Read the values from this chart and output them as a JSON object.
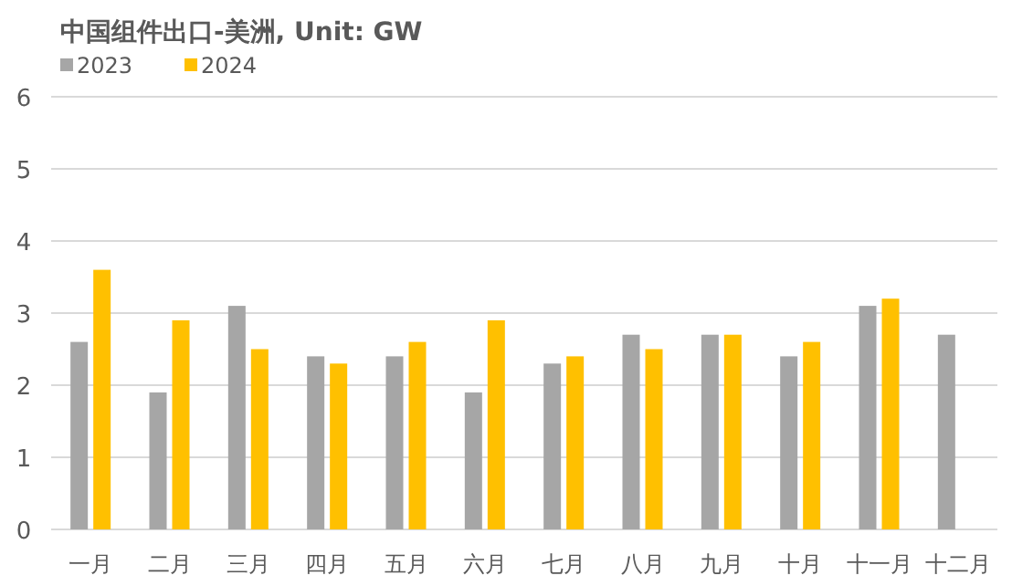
{
  "chart_data": {
    "type": "bar",
    "title": "中国组件出口-美洲, Unit: GW",
    "categories": [
      "一月",
      "二月",
      "三月",
      "四月",
      "五月",
      "六月",
      "七月",
      "八月",
      "九月",
      "十月",
      "十一月",
      "十二月"
    ],
    "series": [
      {
        "name": "2023",
        "color": "#a6a6a6",
        "values": [
          2.6,
          1.9,
          3.1,
          2.4,
          2.4,
          1.9,
          2.3,
          2.7,
          2.7,
          2.4,
          3.1,
          2.7
        ]
      },
      {
        "name": "2024",
        "color": "#ffc000",
        "values": [
          3.6,
          2.9,
          2.5,
          2.3,
          2.6,
          2.9,
          2.4,
          2.5,
          2.7,
          2.6,
          3.2,
          null
        ]
      }
    ],
    "ylim": [
      0,
      6
    ],
    "yticks": [
      0,
      1,
      2,
      3,
      4,
      5,
      6
    ],
    "grid": "y",
    "legend": "top left"
  }
}
